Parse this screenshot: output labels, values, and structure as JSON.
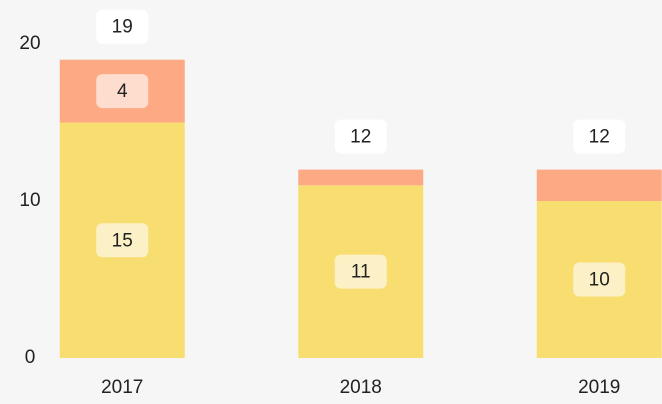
{
  "chart_data": {
    "type": "stacked_bar",
    "categories": [
      "2017",
      "2018",
      "2019"
    ],
    "series": [
      {
        "color": "#f8dd71",
        "values": [
          15,
          11,
          10
        ]
      },
      {
        "color": "#fca984",
        "values": [
          4,
          1,
          2
        ]
      }
    ],
    "totals": [
      19,
      12,
      12
    ],
    "ylim": [
      0,
      20
    ],
    "yticks": [
      0,
      10,
      20
    ],
    "grid": false
  }
}
